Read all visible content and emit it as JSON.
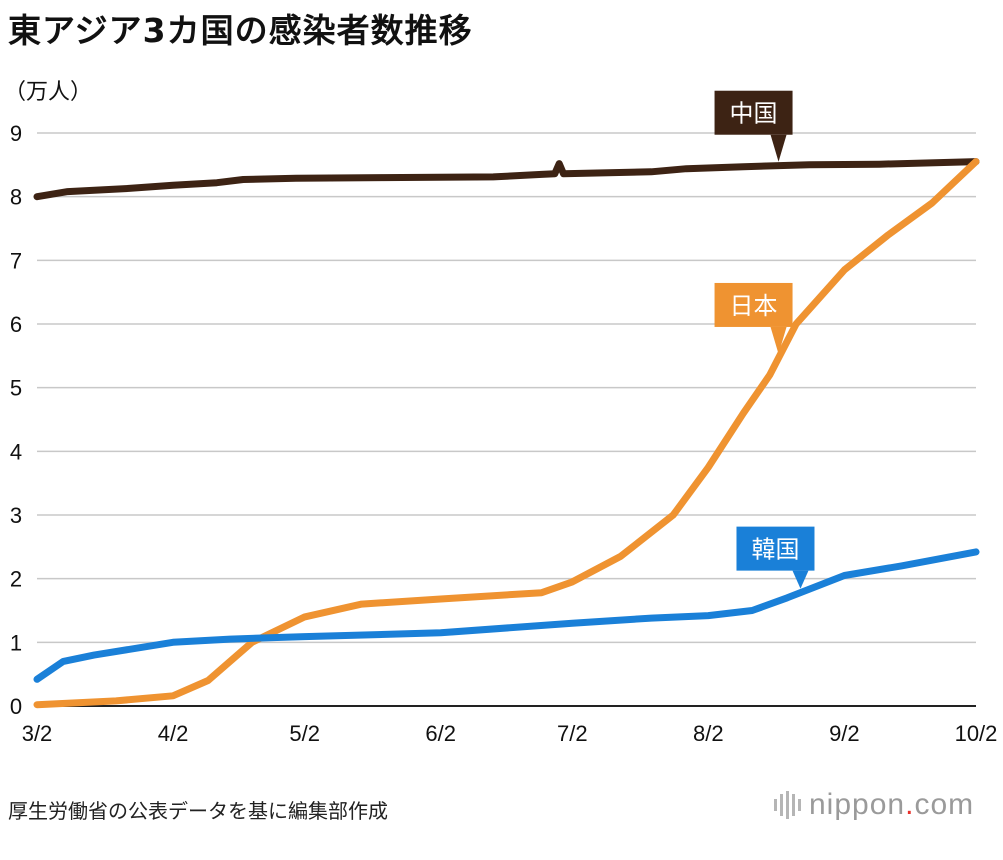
{
  "title": "東アジア3カ国の感染者数推移",
  "unit_label": "（万人）",
  "source": "厚生労働省の公表データを基に編集部作成",
  "logo": {
    "pre": "nippon",
    "dot": ".",
    "post": "com"
  },
  "chart_data": {
    "type": "line",
    "title": "東アジア3カ国の感染者数推移",
    "ylabel": "（万人）",
    "xlabel": "",
    "ylim": [
      0,
      9
    ],
    "yticks": [
      "0",
      "1",
      "2",
      "3",
      "4",
      "5",
      "6",
      "7",
      "8",
      "9"
    ],
    "xlim": [
      "2020-03-02",
      "2020-10-02"
    ],
    "xticks": [
      {
        "date": "2020-03-02",
        "label": "3/2"
      },
      {
        "date": "2020-04-02",
        "label": "4/2"
      },
      {
        "date": "2020-05-02",
        "label": "5/2"
      },
      {
        "date": "2020-06-02",
        "label": "6/2"
      },
      {
        "date": "2020-07-02",
        "label": "7/2"
      },
      {
        "date": "2020-08-02",
        "label": "8/2"
      },
      {
        "date": "2020-09-02",
        "label": "9/2"
      },
      {
        "date": "2020-10-02",
        "label": "10/2"
      }
    ],
    "grid": true,
    "legend": "direct labels on lines",
    "series": [
      {
        "name": "中国",
        "color": "#3d2314",
        "label_date": "2020-08-18",
        "points": [
          [
            "2020-03-02",
            8.0
          ],
          [
            "2020-03-09",
            8.08
          ],
          [
            "2020-03-23",
            8.13
          ],
          [
            "2020-04-02",
            8.18
          ],
          [
            "2020-04-12",
            8.22
          ],
          [
            "2020-04-18",
            8.27
          ],
          [
            "2020-04-30",
            8.29
          ],
          [
            "2020-05-20",
            8.3
          ],
          [
            "2020-06-14",
            8.31
          ],
          [
            "2020-06-25",
            8.35
          ],
          [
            "2020-06-28",
            8.36
          ],
          [
            "2020-06-29",
            8.52
          ],
          [
            "2020-06-30",
            8.36
          ],
          [
            "2020-07-20",
            8.39
          ],
          [
            "2020-07-28",
            8.44
          ],
          [
            "2020-08-10",
            8.47
          ],
          [
            "2020-08-25",
            8.5
          ],
          [
            "2020-09-10",
            8.51
          ],
          [
            "2020-10-02",
            8.55
          ]
        ]
      },
      {
        "name": "日本",
        "color": "#ef9331",
        "label_date": "2020-08-18",
        "points": [
          [
            "2020-03-02",
            0.02
          ],
          [
            "2020-03-20",
            0.08
          ],
          [
            "2020-04-02",
            0.16
          ],
          [
            "2020-04-10",
            0.4
          ],
          [
            "2020-04-20",
            1.0
          ],
          [
            "2020-05-02",
            1.4
          ],
          [
            "2020-05-15",
            1.6
          ],
          [
            "2020-06-02",
            1.68
          ],
          [
            "2020-06-25",
            1.78
          ],
          [
            "2020-07-02",
            1.95
          ],
          [
            "2020-07-13",
            2.35
          ],
          [
            "2020-07-25",
            3.0
          ],
          [
            "2020-08-02",
            3.75
          ],
          [
            "2020-08-10",
            4.6
          ],
          [
            "2020-08-16",
            5.2
          ],
          [
            "2020-08-22",
            6.0
          ],
          [
            "2020-09-02",
            6.85
          ],
          [
            "2020-09-12",
            7.4
          ],
          [
            "2020-09-22",
            7.9
          ],
          [
            "2020-10-02",
            8.55
          ]
        ]
      },
      {
        "name": "韓国",
        "color": "#1a80d8",
        "label_date": "2020-08-23",
        "points": [
          [
            "2020-03-02",
            0.42
          ],
          [
            "2020-03-08",
            0.7
          ],
          [
            "2020-03-15",
            0.8
          ],
          [
            "2020-04-02",
            1.0
          ],
          [
            "2020-04-15",
            1.05
          ],
          [
            "2020-05-02",
            1.09
          ],
          [
            "2020-06-02",
            1.15
          ],
          [
            "2020-07-02",
            1.3
          ],
          [
            "2020-07-20",
            1.38
          ],
          [
            "2020-08-02",
            1.42
          ],
          [
            "2020-08-12",
            1.5
          ],
          [
            "2020-08-20",
            1.7
          ],
          [
            "2020-09-02",
            2.05
          ],
          [
            "2020-09-15",
            2.2
          ],
          [
            "2020-10-02",
            2.42
          ]
        ]
      }
    ]
  }
}
